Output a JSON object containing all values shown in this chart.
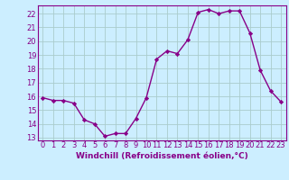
{
  "x": [
    0,
    1,
    2,
    3,
    4,
    5,
    6,
    7,
    8,
    9,
    10,
    11,
    12,
    13,
    14,
    15,
    16,
    17,
    18,
    19,
    20,
    21,
    22,
    23
  ],
  "y": [
    15.9,
    15.7,
    15.7,
    15.5,
    14.3,
    14.0,
    13.1,
    13.3,
    13.3,
    14.4,
    15.9,
    18.7,
    19.3,
    19.1,
    20.1,
    22.1,
    22.3,
    22.0,
    22.2,
    22.2,
    20.6,
    17.9,
    16.4,
    15.6
  ],
  "line_color": "#880088",
  "marker": "D",
  "marker_size": 2.2,
  "bg_color": "#cceeff",
  "grid_color": "#aacccc",
  "xlabel": "Windchill (Refroidissement éolien,°C)",
  "ylim": [
    12.8,
    22.6
  ],
  "xlim": [
    -0.5,
    23.5
  ],
  "yticks": [
    13,
    14,
    15,
    16,
    17,
    18,
    19,
    20,
    21,
    22
  ],
  "xticks": [
    0,
    1,
    2,
    3,
    4,
    5,
    6,
    7,
    8,
    9,
    10,
    11,
    12,
    13,
    14,
    15,
    16,
    17,
    18,
    19,
    20,
    21,
    22,
    23
  ],
  "xlabel_fontsize": 6.5,
  "tick_fontsize": 6.0,
  "line_width": 1.0
}
